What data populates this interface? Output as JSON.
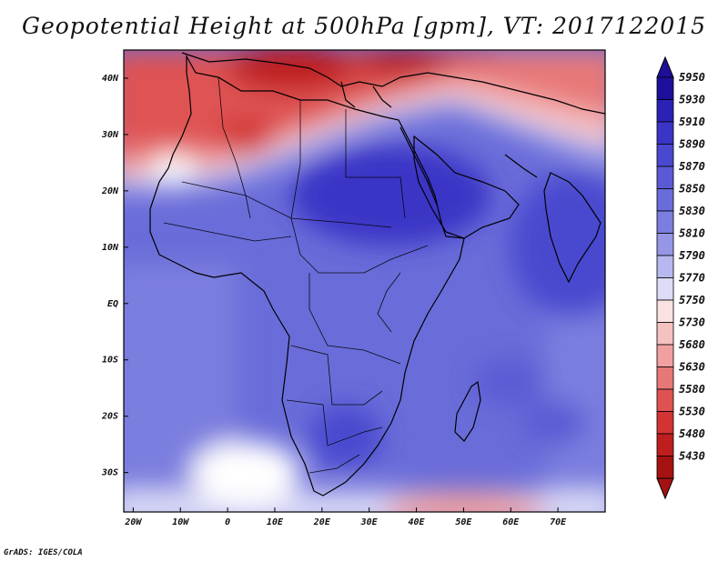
{
  "map": {
    "title": "Geopotential Height at 500hPa [gpm], VT: 2017122015",
    "variable": "Geopotential Height",
    "level": "500hPa",
    "units": "gpm",
    "valid_time": "2017122015",
    "lon_range": [
      -22,
      80
    ],
    "lat_range": [
      -37,
      45
    ],
    "lon_ticks": [
      "20W",
      "10W",
      "0",
      "10E",
      "20E",
      "30E",
      "40E",
      "50E",
      "60E",
      "70E"
    ],
    "lon_tick_values": [
      -20,
      -10,
      0,
      10,
      20,
      30,
      40,
      50,
      60,
      70
    ],
    "lat_ticks": [
      "40N",
      "30N",
      "20N",
      "10N",
      "EQ",
      "10S",
      "20S",
      "30S"
    ],
    "lat_tick_values": [
      40,
      30,
      20,
      10,
      0,
      -10,
      -20,
      -30
    ]
  },
  "colorbar": {
    "levels": [
      "5950",
      "5930",
      "5910",
      "5890",
      "5870",
      "5850",
      "5830",
      "5810",
      "5790",
      "5770",
      "5750",
      "5730",
      "5680",
      "5630",
      "5580",
      "5530",
      "5480",
      "5430"
    ],
    "colors": [
      "#1e0f9a",
      "#2a22b4",
      "#3a35c6",
      "#4a48cf",
      "#5b5ad4",
      "#6a6cd9",
      "#7c7edf",
      "#9597e6",
      "#b6b8ef",
      "#dcdcf7",
      "#fbe2e2",
      "#f6c1c1",
      "#f0a0a0",
      "#e87878",
      "#df5252",
      "#d23434",
      "#bf1e1e",
      "#a61212"
    ]
  },
  "credit": "GrADS: IGES/COLA"
}
